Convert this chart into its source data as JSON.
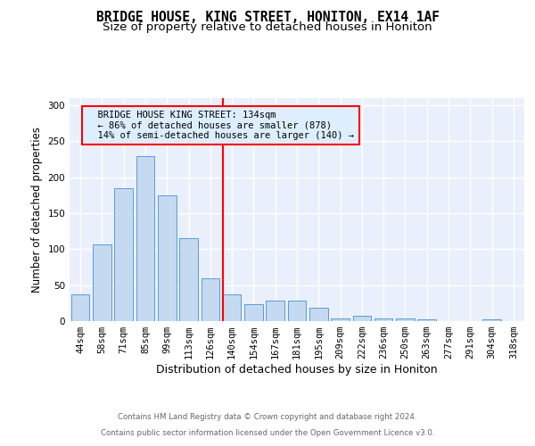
{
  "title": "BRIDGE HOUSE, KING STREET, HONITON, EX14 1AF",
  "subtitle": "Size of property relative to detached houses in Honiton",
  "xlabel": "Distribution of detached houses by size in Honiton",
  "ylabel": "Number of detached properties",
  "categories": [
    "44sqm",
    "58sqm",
    "71sqm",
    "85sqm",
    "99sqm",
    "113sqm",
    "126sqm",
    "140sqm",
    "154sqm",
    "167sqm",
    "181sqm",
    "195sqm",
    "209sqm",
    "222sqm",
    "236sqm",
    "250sqm",
    "263sqm",
    "277sqm",
    "291sqm",
    "304sqm",
    "318sqm"
  ],
  "values": [
    37,
    107,
    185,
    230,
    175,
    115,
    60,
    37,
    23,
    28,
    28,
    18,
    4,
    7,
    4,
    4,
    3,
    0,
    0,
    3,
    0
  ],
  "bar_color": "#c5d9f1",
  "bar_edge_color": "#5b9bd5",
  "reference_line_index": 7,
  "reference_line_color": "red",
  "annotation_line1": "  BRIDGE HOUSE KING STREET: 134sqm",
  "annotation_line2": "  ← 86% of detached houses are smaller (878)",
  "annotation_line3": "  14% of semi-detached houses are larger (140) →",
  "annotation_box_edge_color": "red",
  "annotation_box_fill": "#ddeeff",
  "ylim": [
    0,
    310
  ],
  "yticks": [
    0,
    50,
    100,
    150,
    200,
    250,
    300
  ],
  "footer_line1": "Contains HM Land Registry data © Crown copyright and database right 2024.",
  "footer_line2": "Contains public sector information licensed under the Open Government Licence v3.0.",
  "bg_color": "#eaf0fb",
  "grid_color": "white",
  "title_fontsize": 10.5,
  "subtitle_fontsize": 9.5,
  "ylabel_fontsize": 8.5,
  "xlabel_fontsize": 9,
  "tick_fontsize": 7.5,
  "annotation_fontsize": 7.5,
  "footer_fontsize": 6.2
}
